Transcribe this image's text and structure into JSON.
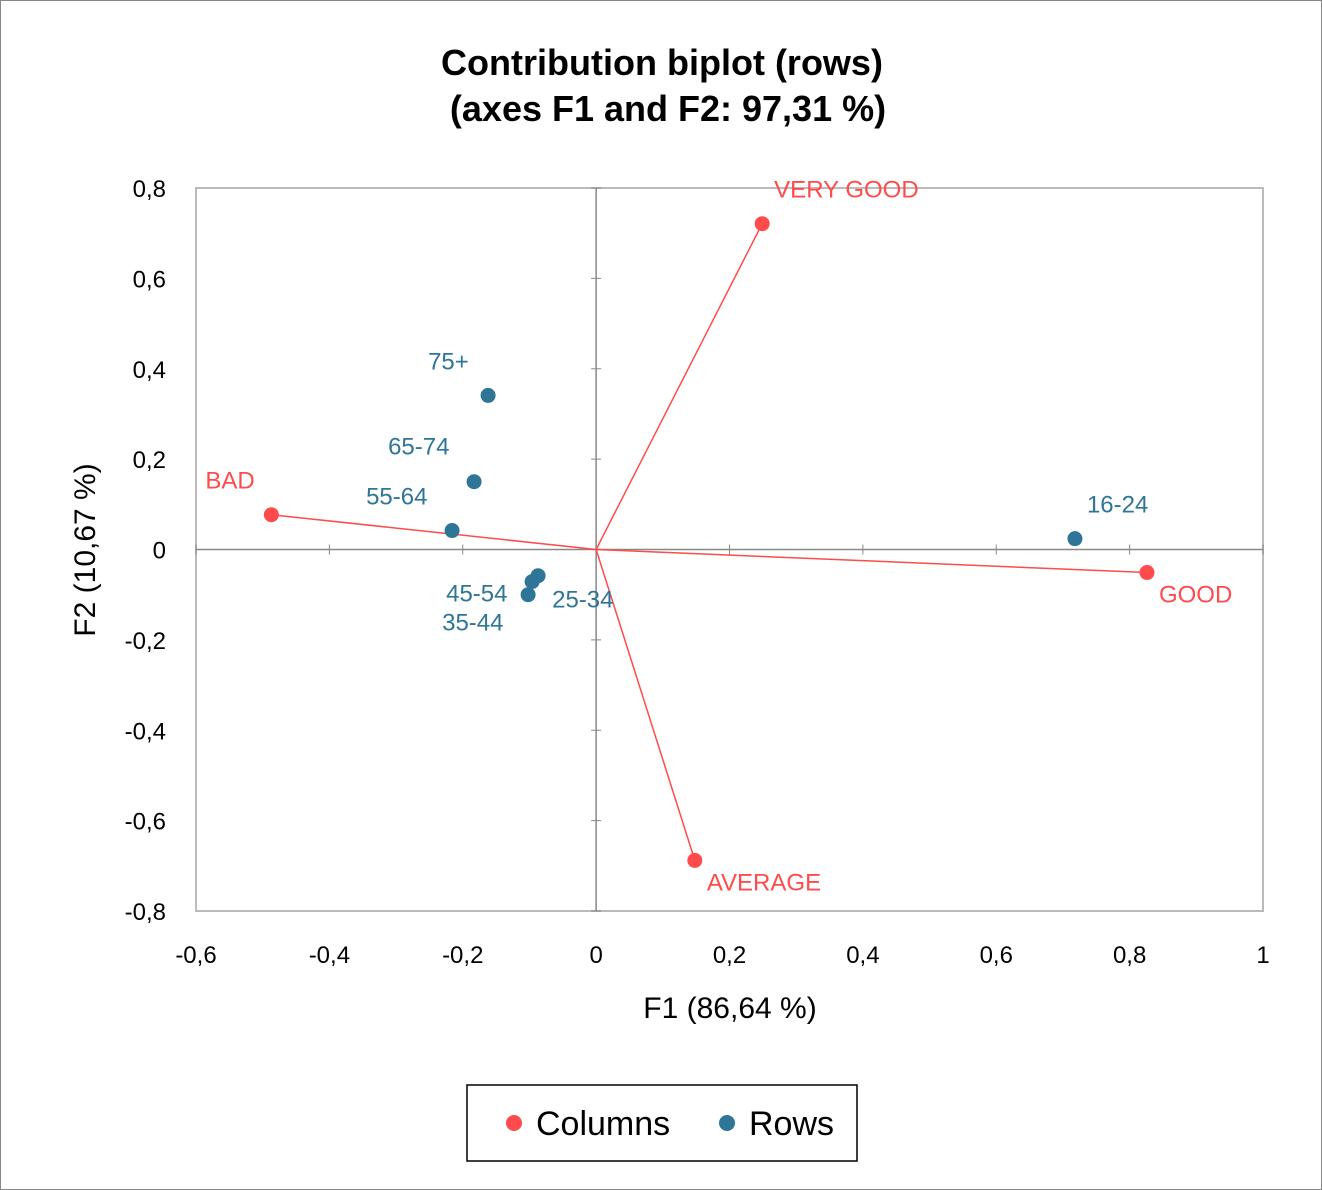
{
  "chart_data": {
    "type": "scatter",
    "title": "Contribution biplot (rows)",
    "subtitle": "(axes F1 and F2: 97,31 %)",
    "xlabel": "F1 (86,64 %)",
    "ylabel": "F2 (10,67 %)",
    "xlim": [
      -0.6,
      1
    ],
    "ylim": [
      -0.8,
      0.8
    ],
    "xticks": [
      "-0,6",
      "-0,4",
      "-0,2",
      "0",
      "0,2",
      "0,4",
      "0,6",
      "0,8",
      "1"
    ],
    "yticks": [
      "0,8",
      "0,6",
      "0,4",
      "0,2",
      "0",
      "-0,2",
      "-0,4",
      "-0,6",
      "-0,8"
    ],
    "grid": false,
    "legend_position": "bottom",
    "series": [
      {
        "name": "Columns",
        "color": "#FF4B4B",
        "vectors_from_origin": true,
        "points": [
          {
            "label": "BAD",
            "x": -0.487,
            "y": 0.077
          },
          {
            "label": "VERY GOOD",
            "x": 0.249,
            "y": 0.721
          },
          {
            "label": "GOOD",
            "x": 0.826,
            "y": -0.051
          },
          {
            "label": "AVERAGE",
            "x": 0.148,
            "y": -0.688
          }
        ]
      },
      {
        "name": "Rows",
        "color": "#2E7597",
        "vectors_from_origin": false,
        "points": [
          {
            "label": "75+",
            "x": -0.162,
            "y": 0.341
          },
          {
            "label": "65-74",
            "x": -0.183,
            "y": 0.15
          },
          {
            "label": "55-64",
            "x": -0.216,
            "y": 0.042
          },
          {
            "label": "16-24",
            "x": 0.718,
            "y": 0.024
          },
          {
            "label": "25-34",
            "x": -0.087,
            "y": -0.058
          },
          {
            "label": "45-54",
            "x": -0.096,
            "y": -0.071
          },
          {
            "label": "35-44",
            "x": -0.102,
            "y": -0.1
          }
        ]
      }
    ]
  }
}
